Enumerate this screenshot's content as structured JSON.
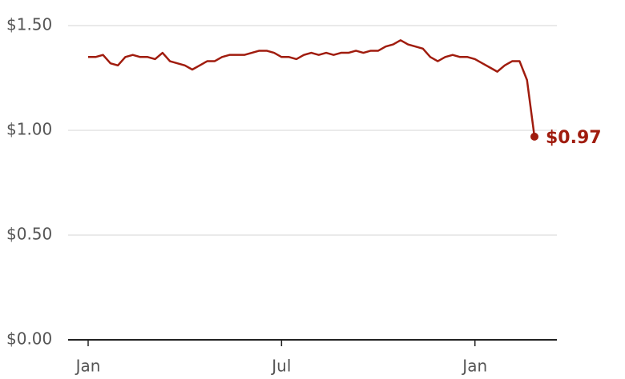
{
  "chart_data": {
    "type": "line",
    "categories": [
      "Jan",
      null,
      null,
      null,
      null,
      null,
      null,
      null,
      null,
      null,
      null,
      null,
      null,
      null,
      null,
      null,
      null,
      null,
      null,
      null,
      null,
      null,
      null,
      null,
      null,
      null,
      "Jul",
      null,
      null,
      null,
      null,
      null,
      null,
      null,
      null,
      null,
      null,
      null,
      null,
      null,
      null,
      null,
      null,
      null,
      null,
      null,
      null,
      null,
      null,
      null,
      null,
      null,
      "Jan",
      null,
      null,
      null,
      null,
      null,
      null,
      null,
      null
    ],
    "series": [
      {
        "color": "#a01c0e",
        "values": [
          1.35,
          1.35,
          1.36,
          1.32,
          1.31,
          1.35,
          1.36,
          1.35,
          1.35,
          1.34,
          1.37,
          1.33,
          1.32,
          1.31,
          1.29,
          1.31,
          1.33,
          1.33,
          1.35,
          1.36,
          1.36,
          1.36,
          1.37,
          1.38,
          1.38,
          1.37,
          1.35,
          1.35,
          1.34,
          1.36,
          1.37,
          1.36,
          1.37,
          1.36,
          1.37,
          1.37,
          1.38,
          1.37,
          1.38,
          1.38,
          1.4,
          1.41,
          1.43,
          1.41,
          1.4,
          1.39,
          1.35,
          1.33,
          1.35,
          1.36,
          1.35,
          1.35,
          1.34,
          1.32,
          1.3,
          1.28,
          1.31,
          1.33,
          1.33,
          1.24,
          0.97
        ],
        "value_labels": [
          null,
          null,
          null,
          null,
          null,
          null,
          null,
          null,
          null,
          null,
          null,
          null,
          null,
          null,
          null,
          null,
          null,
          null,
          null,
          null,
          null,
          null,
          null,
          null,
          null,
          null,
          null,
          null,
          null,
          null,
          null,
          null,
          null,
          null,
          null,
          null,
          null,
          null,
          null,
          null,
          null,
          null,
          null,
          null,
          null,
          null,
          null,
          null,
          null,
          null,
          null,
          null,
          null,
          null,
          null,
          null,
          null,
          null,
          null,
          null,
          "$0.97"
        ]
      }
    ],
    "ylim": [
      0,
      1.5
    ],
    "yticks": [
      {
        "value": 0,
        "label": "$0.00"
      },
      {
        "value": 0.5,
        "label": "$0.50"
      },
      {
        "value": 1,
        "label": "$1.00"
      },
      {
        "value": 1.5,
        "label": "$1.50"
      }
    ],
    "grid": true
  }
}
